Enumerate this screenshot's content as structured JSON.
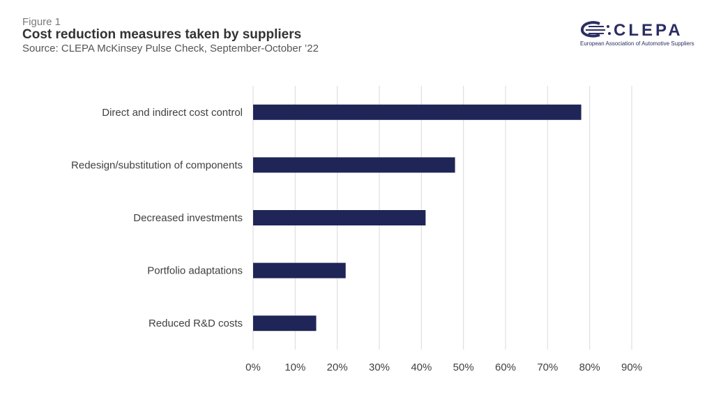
{
  "header": {
    "figure_label": "Figure 1",
    "title": "Cost reduction measures taken by suppliers",
    "subtitle": "Source: CLEPA McKinsey Pulse Check, September-October ’22"
  },
  "logo": {
    "wordmark": "CLEPA",
    "tagline": "European Association of Automotive Suppliers",
    "color": "#2b2e62"
  },
  "chart_data": {
    "type": "bar",
    "orientation": "horizontal",
    "categories": [
      "Direct and indirect cost control",
      "Redesign/substitution of components",
      "Decreased investments",
      "Portfolio adaptations",
      "Reduced R&D costs"
    ],
    "values": [
      78,
      48,
      41,
      22,
      15
    ],
    "xlim": [
      0,
      90
    ],
    "xticks": [
      "0%",
      "10%",
      "20%",
      "30%",
      "40%",
      "50%",
      "60%",
      "70%",
      "80%",
      "90%"
    ],
    "grid": true,
    "bar_color": "#1f2556",
    "grid_color": "#d9d9d9"
  }
}
